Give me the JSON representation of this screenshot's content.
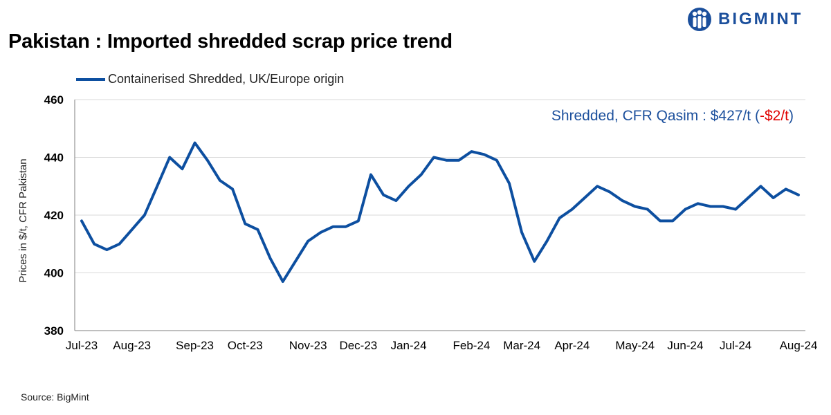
{
  "header": {
    "title": "Pakistan : Imported shredded scrap price trend",
    "logo_text": "BIGMINT"
  },
  "footer": {
    "source": "Source: BigMint"
  },
  "annotation": {
    "prefix": "Shredded, CFR Qasim : $427/t (",
    "change": "-$2/t",
    "suffix": ")",
    "color": "#1b4f9c",
    "change_color": "#e00000"
  },
  "colors": {
    "series": "#0d4fa0",
    "grid": "#d9d9d9",
    "brand": "#1b4f9c"
  },
  "chart_data": {
    "type": "line",
    "title": "Pakistan : Imported shredded scrap price trend",
    "xlabel": "",
    "ylabel": "Prices in $/t, CFR Pakistan",
    "ylim": [
      380,
      460
    ],
    "yticks": [
      380,
      400,
      420,
      440,
      460
    ],
    "grid": true,
    "legend_position": "top-left",
    "x_tick_labels": [
      {
        "label": "Jul-23",
        "index": 0
      },
      {
        "label": "Aug-23",
        "index": 4
      },
      {
        "label": "Sep-23",
        "index": 9
      },
      {
        "label": "Oct-23",
        "index": 13
      },
      {
        "label": "Nov-23",
        "index": 18
      },
      {
        "label": "Dec-23",
        "index": 22
      },
      {
        "label": "Jan-24",
        "index": 26
      },
      {
        "label": "Feb-24",
        "index": 31
      },
      {
        "label": "Mar-24",
        "index": 35
      },
      {
        "label": "Apr-24",
        "index": 39
      },
      {
        "label": "May-24",
        "index": 44
      },
      {
        "label": "Jun-24",
        "index": 48
      },
      {
        "label": "Jul-24",
        "index": 52
      },
      {
        "label": "Aug-24",
        "index": 57
      }
    ],
    "series": [
      {
        "name": "Containerised Shredded, UK/Europe origin",
        "values": [
          418,
          410,
          408,
          410,
          415,
          420,
          430,
          440,
          436,
          445,
          439,
          432,
          429,
          417,
          415,
          405,
          397,
          404,
          411,
          414,
          416,
          416,
          418,
          434,
          427,
          425,
          430,
          434,
          440,
          439,
          439,
          442,
          441,
          439,
          431,
          414,
          404,
          411,
          419,
          422,
          426,
          430,
          428,
          425,
          423,
          422,
          418,
          418,
          422,
          424,
          423,
          423,
          422,
          426,
          430,
          426,
          429,
          427
        ]
      }
    ]
  }
}
